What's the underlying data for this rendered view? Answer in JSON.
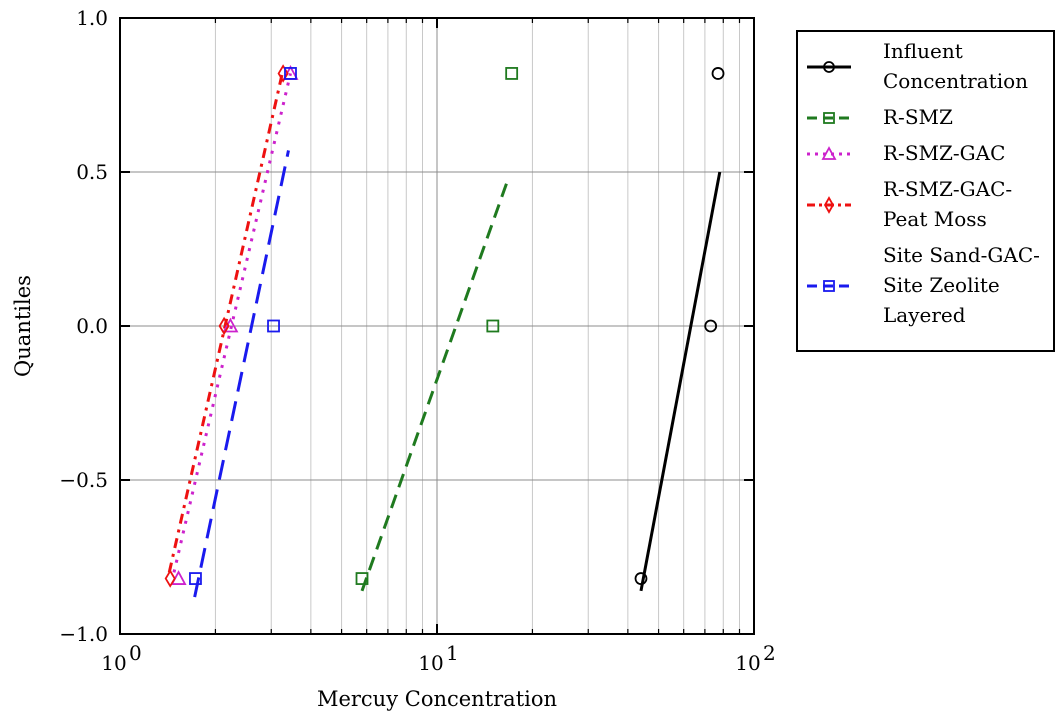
{
  "chart_data": {
    "type": "scatter",
    "title": "",
    "xlabel": "Mercuy Concentration",
    "ylabel": "Quantiles",
    "x_scale": "log",
    "xlim": [
      1,
      100
    ],
    "ylim": [
      -1.0,
      1.0
    ],
    "x_ticks": [
      {
        "value": 1,
        "mantissa": "10",
        "exp": "0"
      },
      {
        "value": 10,
        "mantissa": "10",
        "exp": "1"
      },
      {
        "value": 100,
        "mantissa": "10",
        "exp": "2"
      }
    ],
    "y_ticks": [
      {
        "value": 1.0,
        "label": "1.0"
      },
      {
        "value": 0.5,
        "label": "0.5"
      },
      {
        "value": 0.0,
        "label": "0.0"
      },
      {
        "value": -0.5,
        "label": "−0.5"
      },
      {
        "value": -1.0,
        "label": "−1.0"
      }
    ],
    "grid": true,
    "legend_position": "outside-right",
    "series": [
      {
        "name_lines": [
          "Influent",
          "Concentration"
        ],
        "color": "#000000",
        "marker": "circle",
        "linestyle": "solid",
        "points": [
          {
            "x": 44,
            "y": -0.82
          },
          {
            "x": 73,
            "y": 0.0
          },
          {
            "x": 77,
            "y": 0.82
          }
        ],
        "fit_line": [
          {
            "x": 44,
            "y": -0.86
          },
          {
            "x": 78,
            "y": 0.5
          }
        ]
      },
      {
        "name_lines": [
          "R-SMZ"
        ],
        "color": "#1f7a1f",
        "marker": "square",
        "linestyle": "dashed",
        "points": [
          {
            "x": 5.8,
            "y": -0.82
          },
          {
            "x": 15,
            "y": 0.0
          },
          {
            "x": 17.2,
            "y": 0.82
          }
        ],
        "fit_line": [
          {
            "x": 5.8,
            "y": -0.86
          },
          {
            "x": 16.8,
            "y": 0.48
          }
        ]
      },
      {
        "name_lines": [
          "R-SMZ-GAC"
        ],
        "color": "#cc22cc",
        "marker": "triangle",
        "linestyle": "dotted",
        "points": [
          {
            "x": 1.53,
            "y": -0.82
          },
          {
            "x": 2.23,
            "y": 0.0
          },
          {
            "x": 3.45,
            "y": 0.82
          }
        ],
        "fit_line": [
          {
            "x": 1.48,
            "y": -0.8
          },
          {
            "x": 3.45,
            "y": 0.82
          }
        ]
      },
      {
        "name_lines": [
          "R-SMZ-GAC-",
          "Peat Moss"
        ],
        "color": "#ee1111",
        "marker": "diamond",
        "linestyle": "dashdot",
        "points": [
          {
            "x": 1.44,
            "y": -0.82
          },
          {
            "x": 2.13,
            "y": 0.0
          },
          {
            "x": 3.27,
            "y": 0.82
          }
        ],
        "fit_line": [
          {
            "x": 1.43,
            "y": -0.8
          },
          {
            "x": 3.25,
            "y": 0.82
          }
        ]
      },
      {
        "name_lines": [
          "Site Sand-GAC-",
          "Site Zeolite",
          "Layered"
        ],
        "color": "#1a1aee",
        "marker": "square",
        "linestyle": "longdash",
        "points": [
          {
            "x": 1.73,
            "y": -0.82
          },
          {
            "x": 3.05,
            "y": 0.0
          },
          {
            "x": 3.45,
            "y": 0.82
          }
        ],
        "fit_line": [
          {
            "x": 1.72,
            "y": -0.88
          },
          {
            "x": 3.4,
            "y": 0.57
          }
        ]
      }
    ]
  }
}
